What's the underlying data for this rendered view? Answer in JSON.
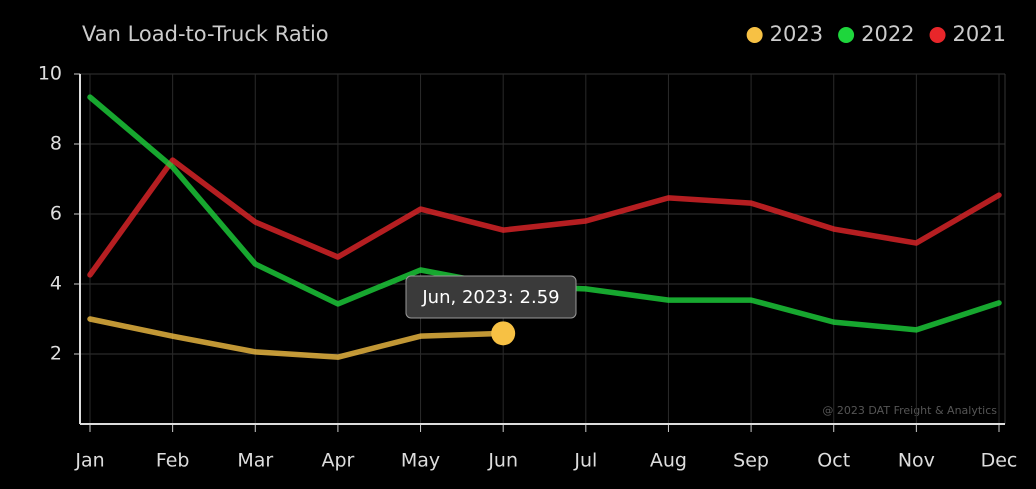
{
  "chart_data": {
    "type": "line",
    "title": "Van Load-to-Truck Ratio",
    "categories": [
      "Jan",
      "Feb",
      "Mar",
      "Apr",
      "May",
      "Jun",
      "Jul",
      "Aug",
      "Sep",
      "Oct",
      "Nov",
      "Dec"
    ],
    "series": [
      {
        "name": "2023",
        "color": "#f7c144",
        "values": [
          3.0,
          2.51,
          2.06,
          1.91,
          2.51,
          2.59,
          null,
          null,
          null,
          null,
          null,
          null
        ]
      },
      {
        "name": "2022",
        "color": "#1ed63c",
        "values": [
          9.34,
          7.34,
          4.57,
          3.43,
          4.4,
          3.95,
          3.86,
          3.54,
          3.54,
          2.91,
          2.69,
          3.46
        ]
      },
      {
        "name": "2021",
        "color": "#e8262a",
        "values": [
          4.26,
          7.54,
          5.77,
          4.77,
          6.14,
          5.54,
          5.8,
          6.46,
          6.31,
          5.57,
          5.17,
          6.54
        ]
      }
    ],
    "ylim": [
      0,
      10
    ],
    "yticks": [
      2,
      4,
      6,
      8,
      10
    ],
    "grid": true,
    "legend": "top-right",
    "tooltip": {
      "series": 0,
      "index": 5,
      "text": "Jun, 2023: 2.59"
    },
    "annotations": [
      "@ 2023 DAT Freight & Analytics"
    ]
  }
}
